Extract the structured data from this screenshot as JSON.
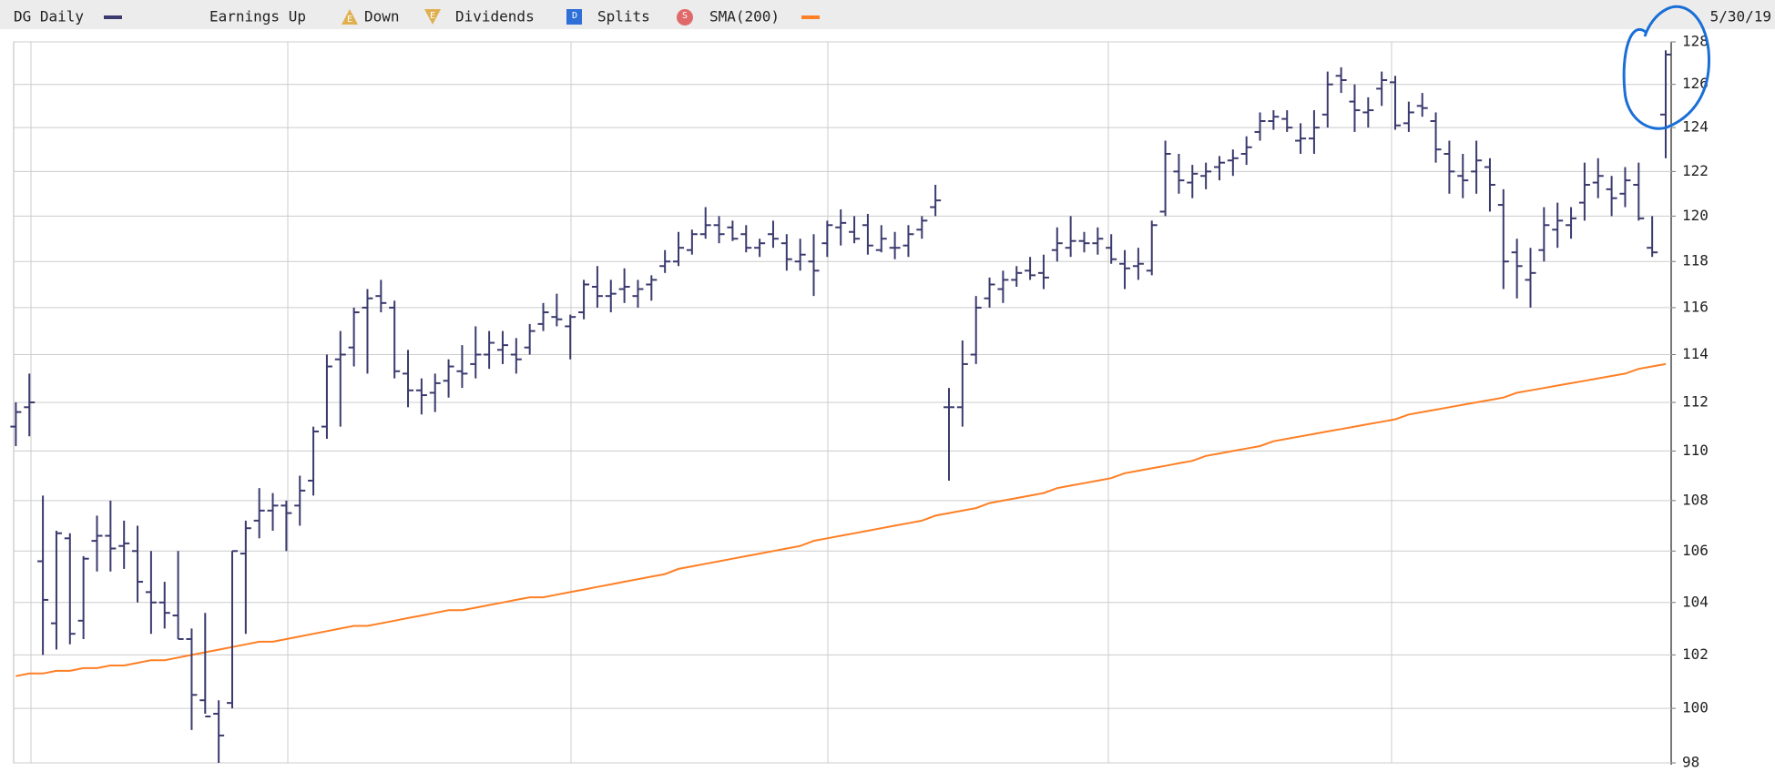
{
  "chart_data": {
    "type": "ohlc",
    "title": "DG Daily",
    "date": "5/30/19",
    "color": "#3a3a6e",
    "legend": [
      {
        "name": "Earnings Up",
        "icon": "E",
        "color": "#e0b050"
      },
      {
        "name": "Down",
        "icon": "E",
        "color": "#e0b050"
      },
      {
        "name": "Dividends",
        "icon": "D",
        "color": "#2f6fd8"
      },
      {
        "name": "Splits",
        "icon": "S",
        "color": "#e06a6a"
      }
    ],
    "log": true,
    "grid": true,
    "ylim": [
      98,
      128
    ],
    "yticks": [
      98,
      100,
      102,
      104,
      106,
      108,
      110,
      112,
      114,
      116,
      118,
      120,
      122,
      124,
      126,
      128
    ],
    "ohlc": [
      [
        111.0,
        112.0,
        110.2,
        111.6
      ],
      [
        111.8,
        113.2,
        110.6,
        112.0
      ],
      [
        105.6,
        108.2,
        102.0,
        104.1
      ],
      [
        103.2,
        106.8,
        102.2,
        106.7
      ],
      [
        106.5,
        106.7,
        102.4,
        102.8
      ],
      [
        103.3,
        105.8,
        102.6,
        105.7
      ],
      [
        106.4,
        107.4,
        105.2,
        106.6
      ],
      [
        106.6,
        108.0,
        105.2,
        106.1
      ],
      [
        106.2,
        107.2,
        105.3,
        106.3
      ],
      [
        106.0,
        107.0,
        104.0,
        104.8
      ],
      [
        104.4,
        106.0,
        102.8,
        104.0
      ],
      [
        104.0,
        104.8,
        103.0,
        103.6
      ],
      [
        103.5,
        106.0,
        102.6,
        102.6
      ],
      [
        102.6,
        103.0,
        99.2,
        100.5
      ],
      [
        100.3,
        103.6,
        99.8,
        99.7
      ],
      [
        99.8,
        100.3,
        98.0,
        99.0
      ],
      [
        100.2,
        106.0,
        100.0,
        106.0
      ],
      [
        105.9,
        107.2,
        102.8,
        106.9
      ],
      [
        107.2,
        108.5,
        106.5,
        107.6
      ],
      [
        107.6,
        108.3,
        106.8,
        107.8
      ],
      [
        107.8,
        108.0,
        106.0,
        107.5
      ],
      [
        107.8,
        109.0,
        107.0,
        108.4
      ],
      [
        108.8,
        111.0,
        108.2,
        110.8
      ],
      [
        111.0,
        114.0,
        110.5,
        113.5
      ],
      [
        113.8,
        115.0,
        111.0,
        114.0
      ],
      [
        114.3,
        116.0,
        113.5,
        115.8
      ],
      [
        116.0,
        116.8,
        113.2,
        116.4
      ],
      [
        116.5,
        117.2,
        115.8,
        116.2
      ],
      [
        116.0,
        116.3,
        113.0,
        113.3
      ],
      [
        113.2,
        114.2,
        111.8,
        112.5
      ],
      [
        112.5,
        113.0,
        111.5,
        112.3
      ],
      [
        112.4,
        113.2,
        111.6,
        112.8
      ],
      [
        112.9,
        113.8,
        112.2,
        113.5
      ],
      [
        113.3,
        114.4,
        112.6,
        113.2
      ],
      [
        113.6,
        115.2,
        113.0,
        114.0
      ],
      [
        114.0,
        115.0,
        113.4,
        114.5
      ],
      [
        114.2,
        115.0,
        113.6,
        114.4
      ],
      [
        114.0,
        114.7,
        113.2,
        113.8
      ],
      [
        114.3,
        115.3,
        114.0,
        115.0
      ],
      [
        115.3,
        116.2,
        115.0,
        115.8
      ],
      [
        115.6,
        116.6,
        115.2,
        115.5
      ],
      [
        115.2,
        115.7,
        113.8,
        115.6
      ],
      [
        115.8,
        117.2,
        115.5,
        117.0
      ],
      [
        116.9,
        117.8,
        116.0,
        116.5
      ],
      [
        116.5,
        117.2,
        115.8,
        116.6
      ],
      [
        116.8,
        117.7,
        116.2,
        116.9
      ],
      [
        116.5,
        117.2,
        116.0,
        116.8
      ],
      [
        117.0,
        117.4,
        116.3,
        117.2
      ],
      [
        117.8,
        118.5,
        117.5,
        118.0
      ],
      [
        118.0,
        119.3,
        117.8,
        118.6
      ],
      [
        118.5,
        119.4,
        118.3,
        119.2
      ],
      [
        119.2,
        120.4,
        119.0,
        119.6
      ],
      [
        119.6,
        120.0,
        118.8,
        119.2
      ],
      [
        119.5,
        119.8,
        118.9,
        119.0
      ],
      [
        119.2,
        119.6,
        118.4,
        118.6
      ],
      [
        118.6,
        119.0,
        118.2,
        118.8
      ],
      [
        119.2,
        119.8,
        118.6,
        119.0
      ],
      [
        118.8,
        119.2,
        117.6,
        118.1
      ],
      [
        118.0,
        119.0,
        117.6,
        118.3
      ],
      [
        118.0,
        119.2,
        116.5,
        117.6
      ],
      [
        118.8,
        119.8,
        118.2,
        119.6
      ],
      [
        119.5,
        120.3,
        118.7,
        119.7
      ],
      [
        119.3,
        120.0,
        118.8,
        119.0
      ],
      [
        119.6,
        120.1,
        118.3,
        118.7
      ],
      [
        118.5,
        119.6,
        118.4,
        119.0
      ],
      [
        118.6,
        119.3,
        118.1,
        118.6
      ],
      [
        118.7,
        119.6,
        118.2,
        119.2
      ],
      [
        119.4,
        120.0,
        119.0,
        119.8
      ],
      [
        120.4,
        121.4,
        120.0,
        120.7
      ],
      [
        111.8,
        112.6,
        108.8,
        111.8
      ],
      [
        111.8,
        114.6,
        111.0,
        113.6
      ],
      [
        114.0,
        116.5,
        113.6,
        116.0
      ],
      [
        116.4,
        117.3,
        116.0,
        117.0
      ],
      [
        116.8,
        117.6,
        116.2,
        117.2
      ],
      [
        117.2,
        117.8,
        116.9,
        117.5
      ],
      [
        117.6,
        118.2,
        117.2,
        117.4
      ],
      [
        117.5,
        118.3,
        116.8,
        117.3
      ],
      [
        118.5,
        119.5,
        118.0,
        118.8
      ],
      [
        118.6,
        120.0,
        118.2,
        118.9
      ],
      [
        118.9,
        119.3,
        118.4,
        118.8
      ],
      [
        118.8,
        119.5,
        118.3,
        119.0
      ],
      [
        118.6,
        119.2,
        117.9,
        118.1
      ],
      [
        117.9,
        118.5,
        116.8,
        117.7
      ],
      [
        117.8,
        118.6,
        117.2,
        117.9
      ],
      [
        117.6,
        119.8,
        117.4,
        119.6
      ],
      [
        120.2,
        123.4,
        120.0,
        122.8
      ],
      [
        122.0,
        122.8,
        121.0,
        121.6
      ],
      [
        121.5,
        122.3,
        120.8,
        121.9
      ],
      [
        121.8,
        122.4,
        121.2,
        122.0
      ],
      [
        122.2,
        122.7,
        121.6,
        122.4
      ],
      [
        122.5,
        123.0,
        121.8,
        122.6
      ],
      [
        122.8,
        123.6,
        122.3,
        123.1
      ],
      [
        123.8,
        124.7,
        123.4,
        124.3
      ],
      [
        124.3,
        124.8,
        123.9,
        124.5
      ],
      [
        124.4,
        124.8,
        123.8,
        124.0
      ],
      [
        123.4,
        124.2,
        122.8,
        123.5
      ],
      [
        123.5,
        124.8,
        122.8,
        124.0
      ],
      [
        124.6,
        126.6,
        124.0,
        126.0
      ],
      [
        126.4,
        126.8,
        125.6,
        126.2
      ],
      [
        125.2,
        126.0,
        123.8,
        124.8
      ],
      [
        124.7,
        125.4,
        124.0,
        124.8
      ],
      [
        125.8,
        126.6,
        125.0,
        126.2
      ],
      [
        126.1,
        126.4,
        123.9,
        124.1
      ],
      [
        124.2,
        125.2,
        123.8,
        124.7
      ],
      [
        125.0,
        125.6,
        124.5,
        124.9
      ],
      [
        124.3,
        124.7,
        122.4,
        123.0
      ],
      [
        122.8,
        123.4,
        121.0,
        122.0
      ],
      [
        121.8,
        122.8,
        120.8,
        121.6
      ],
      [
        122.0,
        123.4,
        121.0,
        122.5
      ],
      [
        122.2,
        122.6,
        120.2,
        121.4
      ],
      [
        120.5,
        121.2,
        116.8,
        118.0
      ],
      [
        118.4,
        119.0,
        116.4,
        117.8
      ],
      [
        117.2,
        118.6,
        116.0,
        117.5
      ],
      [
        118.5,
        120.4,
        118.0,
        119.6
      ],
      [
        119.4,
        120.6,
        118.6,
        119.8
      ],
      [
        119.6,
        120.4,
        119.0,
        119.9
      ],
      [
        120.6,
        122.4,
        119.8,
        121.4
      ],
      [
        121.5,
        122.6,
        120.8,
        121.8
      ],
      [
        121.2,
        121.8,
        120.0,
        120.8
      ],
      [
        121.0,
        122.2,
        120.4,
        121.6
      ],
      [
        121.4,
        122.4,
        119.8,
        119.9
      ],
      [
        118.6,
        120.0,
        118.2,
        118.4
      ],
      [
        124.6,
        127.6,
        122.6,
        127.4
      ]
    ],
    "series": [
      {
        "name": "SMA(200)",
        "color": "#ff7f24",
        "values": [
          101.2,
          101.3,
          101.3,
          101.4,
          101.4,
          101.5,
          101.5,
          101.6,
          101.6,
          101.7,
          101.8,
          101.8,
          101.9,
          102.0,
          102.1,
          102.2,
          102.3,
          102.4,
          102.5,
          102.5,
          102.6,
          102.7,
          102.8,
          102.9,
          103.0,
          103.1,
          103.1,
          103.2,
          103.3,
          103.4,
          103.5,
          103.6,
          103.7,
          103.7,
          103.8,
          103.9,
          104.0,
          104.1,
          104.2,
          104.2,
          104.3,
          104.4,
          104.5,
          104.6,
          104.7,
          104.8,
          104.9,
          105.0,
          105.1,
          105.3,
          105.4,
          105.5,
          105.6,
          105.7,
          105.8,
          105.9,
          106.0,
          106.1,
          106.2,
          106.4,
          106.5,
          106.6,
          106.7,
          106.8,
          106.9,
          107.0,
          107.1,
          107.2,
          107.4,
          107.5,
          107.6,
          107.7,
          107.9,
          108.0,
          108.1,
          108.2,
          108.3,
          108.5,
          108.6,
          108.7,
          108.8,
          108.9,
          109.1,
          109.2,
          109.3,
          109.4,
          109.5,
          109.6,
          109.8,
          109.9,
          110.0,
          110.1,
          110.2,
          110.4,
          110.5,
          110.6,
          110.7,
          110.8,
          110.9,
          111.0,
          111.1,
          111.2,
          111.3,
          111.5,
          111.6,
          111.7,
          111.8,
          111.9,
          112.0,
          112.1,
          112.2,
          112.4,
          112.5,
          112.6,
          112.7,
          112.8,
          112.9,
          113.0,
          113.1,
          113.2,
          113.4,
          113.5,
          113.6
        ]
      }
    ]
  }
}
